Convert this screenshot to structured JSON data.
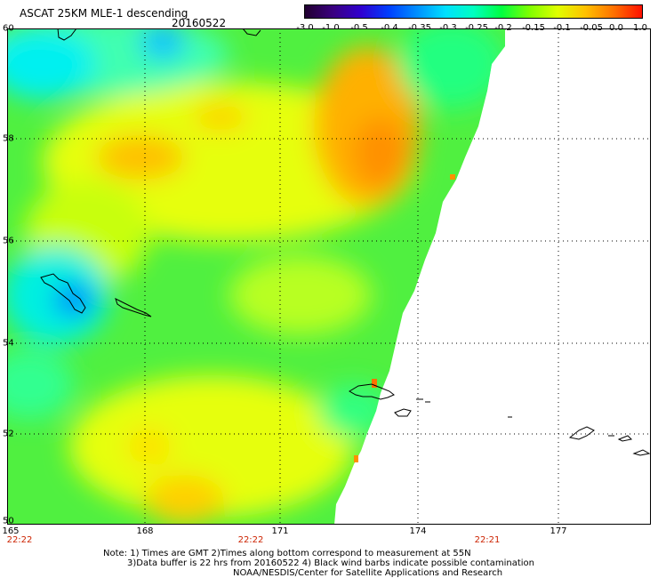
{
  "header": {
    "title": "ASCAT 25KM MLE-1 descending",
    "date": "20160522"
  },
  "colorbar": {
    "labels": [
      "-3.0",
      "-1.0",
      "-0.5",
      "-0.4",
      "-0.35",
      "-0.3",
      "-0.25",
      "-0.2",
      "-0.15",
      "-0.1",
      "-0.05",
      "0.0",
      "1.0"
    ],
    "colors": [
      "#220030",
      "#3a0080",
      "#3000d0",
      "#0040ff",
      "#0090ff",
      "#00e0ff",
      "#00ffc0",
      "#00ff40",
      "#80ff00",
      "#e0ff00",
      "#ffc000",
      "#ff7000",
      "#ff1000"
    ]
  },
  "axes": {
    "lat_labels": [
      "60",
      "58",
      "56",
      "54",
      "52",
      "50"
    ],
    "lon_labels": [
      "165",
      "168",
      "171",
      "174",
      "177"
    ],
    "time_labels": [
      "22:22",
      "22:22",
      "22:21"
    ]
  },
  "notes": {
    "line1": "Note: 1) Times are GMT 2)Times along bottom correspond to measurement at 55N",
    "line2": "3)Data buffer is 22 hrs from 20160522 4) Black wind barbs indicate possible contamination",
    "line3": "NOAA/NESDIS/Center for Satellite Applications and Research"
  }
}
